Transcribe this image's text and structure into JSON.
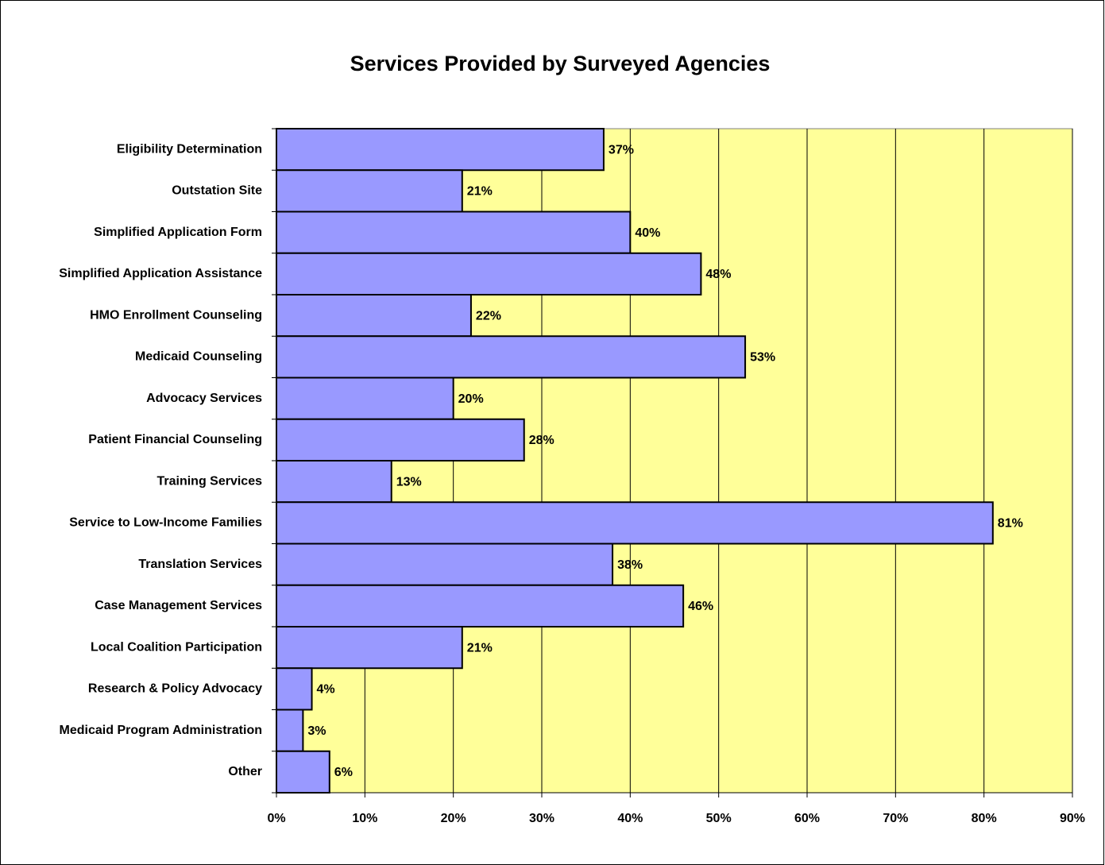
{
  "chart_data": {
    "type": "hbar",
    "title": "Services Provided by Surveyed Agencies",
    "categories": [
      "Eligibility Determination",
      "Outstation Site",
      "Simplified Application Form",
      "Simplified Application Assistance",
      "HMO Enrollment Counseling",
      "Medicaid Counseling",
      "Advocacy Services",
      "Patient Financial Counseling",
      "Training Services",
      "Service to Low-Income Families",
      "Translation Services",
      "Case Management Services",
      "Local Coalition Participation",
      "Research & Policy Advocacy",
      "Medicaid Program Administration",
      "Other"
    ],
    "values": [
      37,
      21,
      40,
      48,
      22,
      53,
      20,
      28,
      13,
      81,
      38,
      46,
      21,
      4,
      3,
      6
    ],
    "value_labels": [
      "37%",
      "21%",
      "40%",
      "48%",
      "22%",
      "53%",
      "20%",
      "28%",
      "13%",
      "81%",
      "38%",
      "46%",
      "21%",
      "4%",
      "3%",
      "6%"
    ],
    "color": "#9999ff",
    "plot_background": "#ffff99",
    "xlim": [
      0,
      90
    ],
    "xticks": [
      {
        "value": 0,
        "label": "0%"
      },
      {
        "value": 10,
        "label": "10%"
      },
      {
        "value": 20,
        "label": "20%"
      },
      {
        "value": 30,
        "label": "30%"
      },
      {
        "value": 40,
        "label": "40%"
      },
      {
        "value": 50,
        "label": "50%"
      },
      {
        "value": 60,
        "label": "60%"
      },
      {
        "value": 70,
        "label": "70%"
      },
      {
        "value": 80,
        "label": "80%"
      },
      {
        "value": 90,
        "label": "90%"
      }
    ],
    "grid": true
  }
}
